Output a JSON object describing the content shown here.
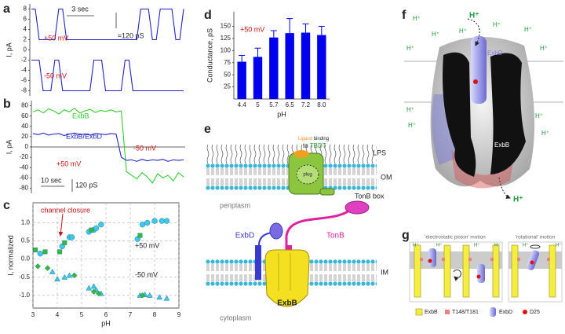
{
  "panel_labels": [
    "a",
    "b",
    "c",
    "d",
    "e",
    "f",
    "g"
  ],
  "chart_data": [
    {
      "type": "line",
      "y_label": "I, pA",
      "ylim": [
        -9,
        9
      ],
      "yticks": [
        8,
        6,
        4,
        2,
        0,
        -2,
        -4,
        -6,
        -8
      ],
      "annotations": [
        "3 sec",
        "≈120 pS"
      ],
      "series": [
        {
          "name": "+50 mV",
          "color": "#2424c8",
          "values": [
            8,
            8,
            2,
            2,
            2,
            2,
            2,
            8,
            8,
            2,
            2,
            2,
            2,
            2,
            2,
            2,
            2,
            2,
            2,
            2,
            2,
            2,
            2,
            2,
            2,
            2,
            2,
            2,
            8,
            8,
            8,
            2,
            2,
            8,
            8,
            8,
            8,
            2,
            2,
            8
          ]
        },
        {
          "name": "-50 mV",
          "color": "#2424c8",
          "values": [
            -2,
            -2,
            -2,
            -8,
            -8,
            -8,
            -2,
            -2,
            -8,
            -8,
            -8,
            -8,
            -8,
            -8,
            -8,
            -8,
            -2,
            -2,
            -2,
            -8,
            -8,
            -8,
            -8,
            -8,
            -2,
            -2,
            -8,
            -8,
            -8,
            -8,
            -8,
            -8,
            -8,
            -8,
            -8,
            -8,
            -8,
            -8,
            -8,
            -8
          ]
        }
      ]
    },
    {
      "type": "line",
      "y_label": "I, pA",
      "ylim": [
        -90,
        90
      ],
      "yticks": [
        80,
        60,
        40,
        20,
        0,
        -20,
        -40,
        -60,
        -80
      ],
      "annotations": [
        "-50 mV",
        "+50 mV",
        "10 sec",
        "120 pS"
      ],
      "series": [
        {
          "name": "ExbB",
          "color": "#33cc33",
          "values": [
            68,
            72,
            66,
            74,
            70,
            64,
            72,
            68,
            75,
            66,
            70,
            73,
            67,
            71,
            69,
            72,
            68,
            70,
            -48,
            -55,
            -62,
            -50,
            -58,
            -70,
            -52,
            -60,
            -55,
            -66,
            -50,
            -58
          ]
        },
        {
          "name": "ExbB/ExbD",
          "color": "#2424c8",
          "values": [
            26,
            24,
            27,
            23,
            25,
            26,
            22,
            25,
            27,
            24,
            25,
            23,
            26,
            25,
            24,
            26,
            25,
            -20,
            -26,
            -25,
            -28,
            -24,
            -27,
            -25,
            -26,
            -24,
            -28,
            -25,
            -26,
            -25
          ]
        }
      ]
    },
    {
      "type": "scatter",
      "x_label": "pH",
      "y_label": "I, normalized",
      "xlim": [
        3,
        9
      ],
      "xticks": [
        3,
        4,
        5,
        6,
        7,
        8,
        9
      ],
      "ylim": [
        -1.35,
        1.55
      ],
      "yticks": [
        {
          "value": 1,
          "label": "1.0"
        },
        0.5,
        {
          "value": 0,
          "label": "0.0"
        },
        -0.5,
        {
          "value": -1,
          "label": "-1.0"
        }
      ],
      "grid": true,
      "annotations": [
        "channel closure",
        "+50 mV",
        "-50 mV"
      ],
      "series": [
        {
          "marker": "circle",
          "color": "#40c8e8",
          "x": [
            3.3,
            4.2,
            4.5,
            4.6,
            5.3,
            5.5,
            5.6,
            5.8,
            7.3,
            7.5,
            7.7,
            8.0,
            8.3,
            8.5
          ],
          "values": [
            0.15,
            0.35,
            0.6,
            0.6,
            0.75,
            0.8,
            0.85,
            0.95,
            0.55,
            0.95,
            1.0,
            1.05,
            1.05,
            1.05
          ]
        },
        {
          "marker": "square",
          "color": "#33bb33",
          "x": [
            3.1,
            3.5,
            4.1,
            4.3,
            5.4,
            7.4
          ],
          "values": [
            0.25,
            0.2,
            0.2,
            0.45,
            0.8,
            0.65
          ]
        },
        {
          "marker": "triangle",
          "color": "#40c8e8",
          "x": [
            3.8,
            4.0,
            4.3,
            4.5,
            5.3,
            5.5,
            5.6,
            5.8,
            7.4,
            7.6,
            7.8,
            8.2,
            8.5
          ],
          "values": [
            -0.35,
            -0.55,
            -0.5,
            -0.45,
            -0.8,
            -0.75,
            -0.85,
            -0.95,
            -1.0,
            -0.98,
            -1.0,
            -1.05,
            -1.08
          ]
        },
        {
          "marker": "diamond",
          "color": "#33bb33",
          "x": [
            3.2,
            3.6,
            4.7,
            5.5,
            5.7,
            7.5
          ],
          "values": [
            -0.2,
            -0.25,
            -0.45,
            -0.9,
            -0.95,
            -1.0
          ]
        }
      ]
    },
    {
      "type": "bar",
      "x_label": "pH",
      "y_label": "Conductance, pS",
      "annotations": [
        "+50 mV"
      ],
      "categories": [
        "4.4",
        "5",
        "5.7",
        "6.5",
        "7.2",
        "8.0"
      ],
      "values": [
        77,
        87,
        127,
        136,
        137,
        132
      ],
      "errors": [
        13,
        18,
        14,
        30,
        18,
        18
      ],
      "color": "#0000ee",
      "ylim": [
        0,
        180
      ],
      "yticks": [
        25,
        50,
        75,
        100,
        125,
        150
      ]
    }
  ],
  "diagram_e": {
    "lps": "LPS",
    "om": "OM",
    "periplasm": "periplasm",
    "im": "IM",
    "cytoplasm": "cytoplasm",
    "exbb": "ExbB",
    "exbd": "ExbD",
    "tonb": "TonB",
    "tonb_box": "TonB box",
    "plug": "plug",
    "ligand": "Ligand",
    "binding": "binding",
    "to": "to",
    "tbdt": "TBDT"
  },
  "structure_f": {
    "exbd": "ExbD",
    "exbb": "ExbB",
    "h_labels": [
      "H⁺",
      "H⁺",
      "H⁺",
      "H⁺",
      "H⁺",
      "H⁺",
      "H⁺",
      "H⁺",
      "H⁺",
      "H⁺",
      "H⁺",
      "H⁺",
      "H⁺"
    ]
  },
  "diagram_g": {
    "piston": "'electrostatic piston' motion",
    "rotational": "'rotational' motion",
    "h_labels": [
      "H⁺",
      "H⁺",
      "H⁺",
      "H⁺",
      "H⁺",
      "H⁺"
    ],
    "legend": [
      "ExbB",
      "T148/T181",
      "ExbD",
      "D25"
    ]
  }
}
